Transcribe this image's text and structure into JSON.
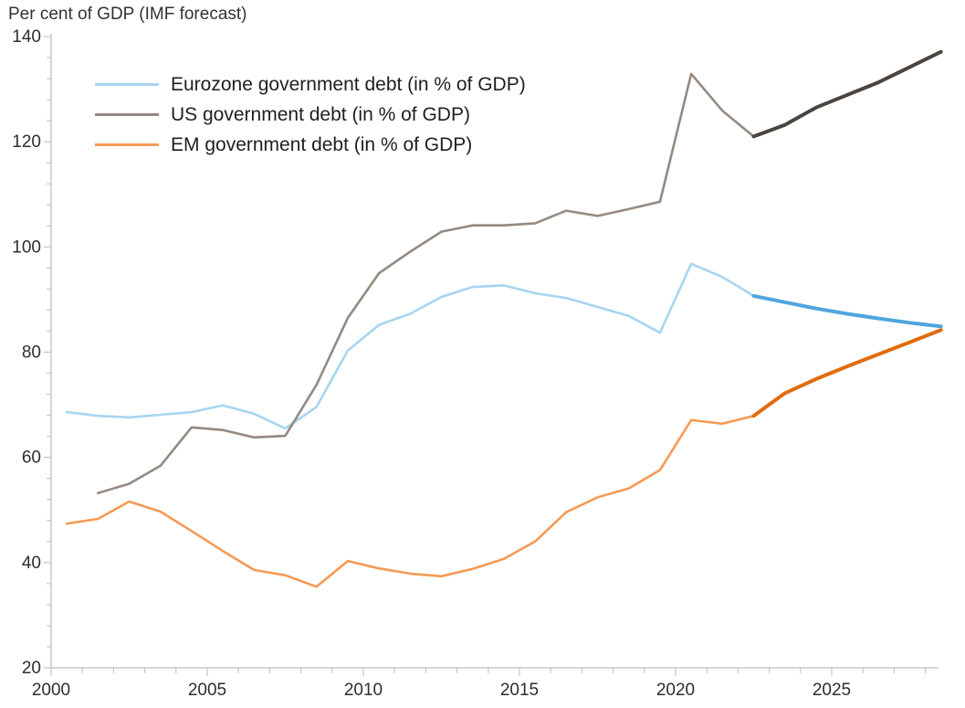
{
  "title": "Per cent of GDP (IMF forecast)",
  "legend": [
    {
      "label": "Eurozone government debt (in % of GDP)",
      "color": "#A7D5F1"
    },
    {
      "label": "US government debt (in % of GDP)",
      "color": "#948A81"
    },
    {
      "label": "EM government debt (in % of GDP)",
      "color": "#F59A56"
    }
  ],
  "colors": {
    "eurozone_history": "#A7D5F1",
    "eurozone_forecast": "#4FA5DE",
    "us_history": "#948A81",
    "us_forecast": "#4C453F",
    "em_history": "#F59A56",
    "em_forecast": "#E06C0D",
    "axis": "#C8C8C8",
    "tick": "#C4C4C4",
    "axis_label": "#2E2E2E"
  },
  "chart_data": {
    "type": "line",
    "title": "Per cent of GDP (IMF forecast)",
    "xlabel": "",
    "ylabel": "Per cent of GDP",
    "x_axis": {
      "min_year": 2000,
      "max_year": 2028,
      "major_tick_labels": [
        "2000",
        "2005",
        "2010",
        "2015",
        "2020",
        "2025"
      ],
      "major_tick_years": [
        2000,
        2005,
        2010,
        2015,
        2020,
        2025
      ],
      "minor_tick_every_years": 1
    },
    "y_axis": {
      "min": 20,
      "max": 140,
      "major_tick_labels": [
        "20",
        "40",
        "60",
        "80",
        "100",
        "120",
        "140"
      ],
      "major_ticks": [
        20,
        40,
        60,
        80,
        100,
        120,
        140
      ],
      "minor_tick_every": 4
    },
    "grid": false,
    "legend_position": "top-left-inside",
    "forecast_start_year": 2022,
    "note": "Lines are drawn thin/light for history and thick/dark from 2022 onward (IMF forecast).",
    "series": [
      {
        "name": "Eurozone government debt (in % of GDP)",
        "start_year": 2000,
        "color_history": "#A7D5F1",
        "color_forecast": "#4FA5DE",
        "values": [
          68.6,
          67.9,
          67.6,
          68.1,
          68.6,
          69.9,
          68.3,
          65.5,
          69.6,
          80.3,
          85.2,
          87.3,
          90.5,
          92.4,
          92.7,
          91.2,
          90.3,
          88.6,
          86.9,
          83.7,
          96.8,
          94.3,
          90.7,
          89.5,
          88.3,
          87.3,
          86.4,
          85.6,
          84.9
        ]
      },
      {
        "name": "US government debt (in % of GDP)",
        "start_year": 2001,
        "color_history": "#948A81",
        "color_forecast": "#4C453F",
        "values": [
          53.2,
          55.0,
          58.4,
          65.7,
          65.2,
          63.8,
          64.1,
          73.8,
          86.5,
          95.0,
          99.1,
          102.9,
          104.1,
          104.1,
          104.5,
          106.9,
          105.9,
          107.2,
          108.6,
          132.9,
          125.9,
          121.0,
          123.2,
          126.5,
          128.9,
          131.3,
          134.2,
          137.1
        ]
      },
      {
        "name": "EM government debt (in % of GDP)",
        "start_year": 2000,
        "color_history": "#F59A56",
        "color_forecast": "#E06C0D",
        "values": [
          47.4,
          48.3,
          51.6,
          49.7,
          46.0,
          42.2,
          38.6,
          37.6,
          35.4,
          40.3,
          38.9,
          37.9,
          37.4,
          38.8,
          40.7,
          44.0,
          49.6,
          52.4,
          54.1,
          57.6,
          67.1,
          66.4,
          67.9,
          72.2,
          74.9,
          77.3,
          79.6,
          81.9,
          84.2
        ]
      }
    ]
  }
}
